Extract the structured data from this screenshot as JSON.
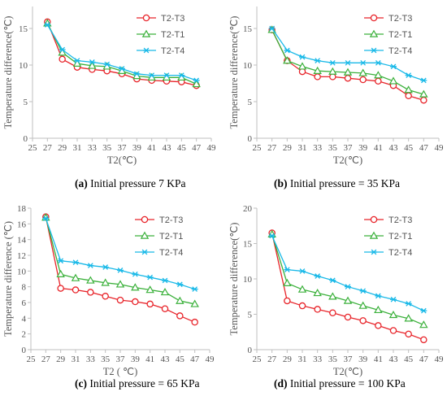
{
  "colors": {
    "T2-T3": "#e8242a",
    "T2-T1": "#3cb13c",
    "T2-T4": "#19b9e8",
    "axis": "#bfbfbf"
  },
  "chart_data": [
    {
      "type": "line",
      "caption_letter": "(a)",
      "caption_text": "Initial pressure 7 KPa",
      "xlabel": "T2(℃)",
      "ylabel": "Temperature difference(℃)",
      "xlim": [
        25,
        49
      ],
      "ylim": [
        0,
        18
      ],
      "xticks": [
        25,
        27,
        29,
        31,
        33,
        35,
        37,
        39,
        41,
        43,
        45,
        47,
        49
      ],
      "yticks": [
        0,
        5,
        10,
        15
      ],
      "legend": "top-right",
      "x": [
        27,
        29,
        31,
        33,
        35,
        37,
        39,
        41,
        43,
        45,
        47
      ],
      "series": [
        {
          "name": "T2-T3",
          "marker": "circle",
          "values": [
            15.9,
            10.8,
            9.7,
            9.4,
            9.2,
            8.8,
            8.1,
            7.9,
            7.8,
            7.7,
            7.2
          ]
        },
        {
          "name": "T2-T1",
          "marker": "triangle",
          "values": [
            15.7,
            11.7,
            10.2,
            9.9,
            9.8,
            9.2,
            8.5,
            8.3,
            8.3,
            8.3,
            7.4
          ]
        },
        {
          "name": "T2-T4",
          "marker": "star",
          "values": [
            15.5,
            12.1,
            10.6,
            10.4,
            10.1,
            9.5,
            8.8,
            8.6,
            8.6,
            8.6,
            7.9
          ]
        }
      ]
    },
    {
      "type": "line",
      "caption_letter": "(b)",
      "caption_text": "Initial pressure = 35 KPa",
      "xlabel": "T2(℃)",
      "ylabel": "Temperature difference(℃)",
      "xlim": [
        25,
        49
      ],
      "ylim": [
        0,
        18
      ],
      "xticks": [
        25,
        27,
        29,
        31,
        33,
        35,
        37,
        39,
        41,
        43,
        45,
        47,
        49
      ],
      "yticks": [
        0,
        5,
        10,
        15
      ],
      "legend": "top-right",
      "x": [
        27,
        29,
        31,
        33,
        35,
        37,
        39,
        41,
        43,
        45,
        47
      ],
      "series": [
        {
          "name": "T2-T3",
          "marker": "circle",
          "values": [
            14.8,
            10.6,
            9.1,
            8.4,
            8.4,
            8.2,
            8.0,
            7.8,
            7.2,
            5.8,
            5.2
          ]
        },
        {
          "name": "T2-T1",
          "marker": "triangle",
          "values": [
            14.8,
            10.6,
            9.8,
            9.2,
            9.1,
            9.0,
            8.9,
            8.6,
            7.8,
            6.6,
            6.0
          ]
        },
        {
          "name": "T2-T4",
          "marker": "star",
          "values": [
            15.0,
            12.0,
            11.1,
            10.6,
            10.3,
            10.3,
            10.3,
            10.3,
            9.8,
            8.6,
            7.9
          ]
        }
      ]
    },
    {
      "type": "line",
      "caption_letter": "(c)",
      "caption_text": "Initial pressure = 65 KPa",
      "xlabel": "T2 ( ℃)",
      "ylabel": "Temperature difference (℃)",
      "xlim": [
        25,
        49
      ],
      "ylim": [
        0,
        18
      ],
      "xticks": [
        25,
        27,
        29,
        31,
        33,
        35,
        37,
        39,
        41,
        43,
        45,
        47,
        49
      ],
      "yticks": [
        0,
        2,
        4,
        6,
        8,
        10,
        12,
        14,
        16,
        18
      ],
      "legend": "top-right",
      "x": [
        27,
        29,
        31,
        33,
        35,
        37,
        39,
        41,
        43,
        45,
        47
      ],
      "series": [
        {
          "name": "T2-T3",
          "marker": "circle",
          "values": [
            16.9,
            7.8,
            7.6,
            7.3,
            6.8,
            6.3,
            6.1,
            5.8,
            5.2,
            4.3,
            3.5
          ]
        },
        {
          "name": "T2-T1",
          "marker": "triangle",
          "values": [
            16.8,
            9.6,
            9.1,
            8.8,
            8.5,
            8.3,
            7.9,
            7.6,
            7.3,
            6.2,
            5.8
          ]
        },
        {
          "name": "T2-T4",
          "marker": "star",
          "values": [
            16.7,
            11.3,
            11.1,
            10.7,
            10.5,
            10.1,
            9.6,
            9.2,
            8.8,
            8.3,
            7.7
          ]
        }
      ]
    },
    {
      "type": "line",
      "caption_letter": "(d)",
      "caption_text": "Initial pressure = 100 KPa",
      "xlabel": "T2(℃)",
      "ylabel": "Temperature difference(℃)",
      "xlim": [
        25,
        49
      ],
      "ylim": [
        0,
        20
      ],
      "xticks": [
        25,
        27,
        29,
        31,
        33,
        35,
        37,
        39,
        41,
        43,
        45,
        47,
        49
      ],
      "yticks": [
        0,
        5,
        10,
        15,
        20
      ],
      "legend": "top-right",
      "x": [
        27,
        29,
        31,
        33,
        35,
        37,
        39,
        41,
        43,
        45,
        47
      ],
      "series": [
        {
          "name": "T2-T3",
          "marker": "circle",
          "values": [
            16.5,
            6.9,
            6.2,
            5.7,
            5.2,
            4.6,
            4.1,
            3.4,
            2.7,
            2.2,
            1.4
          ]
        },
        {
          "name": "T2-T1",
          "marker": "triangle",
          "values": [
            16.3,
            9.4,
            8.5,
            8.0,
            7.5,
            6.9,
            6.2,
            5.6,
            4.9,
            4.4,
            3.5
          ]
        },
        {
          "name": "T2-T4",
          "marker": "star",
          "values": [
            16.1,
            11.3,
            11.1,
            10.4,
            9.8,
            8.9,
            8.3,
            7.6,
            7.1,
            6.5,
            5.5
          ]
        }
      ]
    }
  ]
}
